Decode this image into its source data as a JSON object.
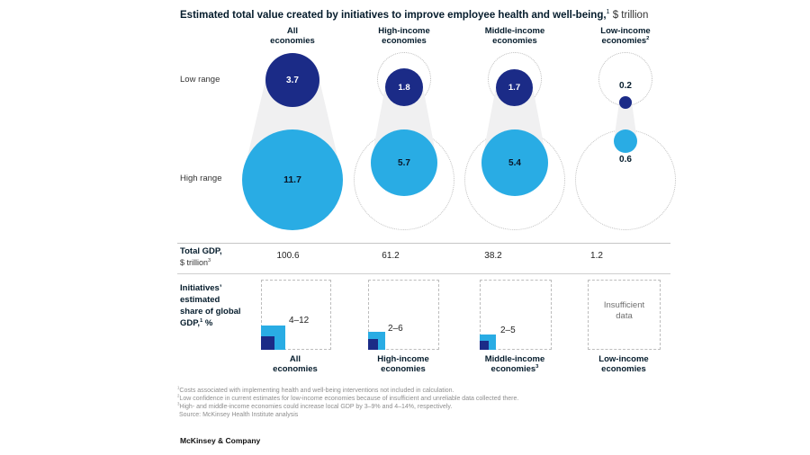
{
  "title": {
    "bold": "Estimated total value created by initiatives to improve employee health and well-being,",
    "sup": "1",
    "normal": " $ trillion"
  },
  "row_labels": {
    "low": "Low range",
    "high": "High range"
  },
  "bubbles": {
    "columns": [
      {
        "header1": "All",
        "header2": "economies",
        "header_sup": "",
        "low": "3.7",
        "high": "11.7"
      },
      {
        "header1": "High-income",
        "header2": "economies",
        "header_sup": "",
        "low": "1.8",
        "high": "5.7"
      },
      {
        "header1": "Middle-income",
        "header2": "economies",
        "header_sup": "",
        "low": "1.7",
        "high": "5.4"
      },
      {
        "header1": "Low-income",
        "header2": "economies",
        "header_sup": "2",
        "low": "0.2",
        "high": "0.6"
      }
    ]
  },
  "gdp": {
    "label_line1": "Total GDP,",
    "label_line2": "$ trillion",
    "label_sup": "3",
    "values": [
      "100.6",
      "61.2",
      "38.2",
      "1.2"
    ]
  },
  "share": {
    "label_line1": "Initiatives’",
    "label_line2": "estimated",
    "label_line3": "share of global",
    "label_line4a": "GDP,",
    "label_sup": "1",
    "label_line4b": " %",
    "boxes": [
      {
        "range": "4–12",
        "label1": "All",
        "label2": "economies",
        "label_sup": ""
      },
      {
        "range": "2–6",
        "label1": "High-income",
        "label2": "economies",
        "label_sup": ""
      },
      {
        "range": "2–5",
        "label1": "Middle-income",
        "label2": "economies",
        "label_sup": "3"
      },
      {
        "empty1": "Insufficient",
        "empty2": "data",
        "label1": "Low-income",
        "label2": "economies",
        "label_sup": ""
      }
    ]
  },
  "footnotes": [
    {
      "sup": "1",
      "text": "Costs associated with implementing health and well-being interventions not included in calculation."
    },
    {
      "sup": "2",
      "text": "Low confidence in current estimates for low-income economies because of insufficient and unreliable data collected there."
    },
    {
      "sup": "3",
      "text": "High- and middle-income economies could increase local GDP by 3–9% and 4–14%, respectively."
    },
    {
      "sup": "",
      "text": "Source: McKinsey Health Institute analysis"
    }
  ],
  "logo": "McKinsey & Company",
  "colors": {
    "dark_blue": "#1b2b87",
    "light_blue": "#29ace4",
    "funnel_gray": "#f0f0f1",
    "dashed_gray": "#bfbfbf"
  },
  "chart_data": {
    "type": "bubble",
    "title": "Estimated total value created by initiatives to improve employee health and well-being, $ trillion",
    "categories": [
      "All economies",
      "High-income economies",
      "Middle-income economies",
      "Low-income economies"
    ],
    "series": [
      {
        "name": "Low range",
        "values": [
          3.7,
          1.8,
          1.7,
          0.2
        ]
      },
      {
        "name": "High range",
        "values": [
          11.7,
          5.7,
          5.4,
          0.6
        ]
      }
    ],
    "total_gdp_trillion": {
      "label": "Total GDP, $ trillion",
      "values": [
        100.6,
        61.2,
        38.2,
        1.2
      ]
    },
    "share_of_global_gdp_pct": {
      "label": "Initiatives’ estimated share of global GDP, %",
      "ranges": [
        [
          4,
          12
        ],
        [
          2,
          6
        ],
        [
          2,
          5
        ],
        null
      ],
      "display": [
        "4–12",
        "2–6",
        "2–5",
        "Insufficient data"
      ]
    },
    "layout_hints": {
      "bubble_area_scaled_to_value": true,
      "dashed_circles": "All-economies bubble sizes repeated as reference outlines in other columns",
      "legend_position": "row labels at left (Low range / High range)"
    }
  }
}
